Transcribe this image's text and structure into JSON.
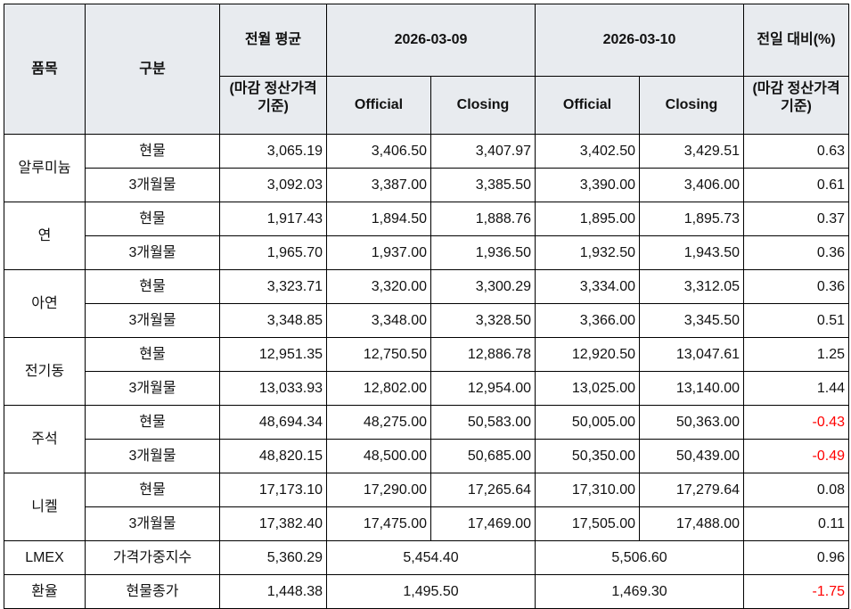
{
  "header": {
    "item": "품목",
    "type": "구분",
    "prev_month_avg": "전월 평균",
    "basis_note": "(마감 정산가격 기준)",
    "date1": "2026-03-09",
    "date2": "2026-03-10",
    "change": "전일 대비(%)",
    "official": "Official",
    "closing": "Closing"
  },
  "colors": {
    "header_bg": "#e8ebef",
    "negative": "#ff0000"
  },
  "groups": [
    {
      "name": "알루미늄",
      "rows": [
        {
          "type": "현물",
          "avg": "3,065.19",
          "d1_official": "3,406.50",
          "d1_closing": "3,407.97",
          "d2_official": "3,402.50",
          "d2_closing": "3,429.51",
          "change": "0.63"
        },
        {
          "type": "3개월물",
          "avg": "3,092.03",
          "d1_official": "3,387.00",
          "d1_closing": "3,385.50",
          "d2_official": "3,390.00",
          "d2_closing": "3,406.00",
          "change": "0.61"
        }
      ]
    },
    {
      "name": "연",
      "rows": [
        {
          "type": "현물",
          "avg": "1,917.43",
          "d1_official": "1,894.50",
          "d1_closing": "1,888.76",
          "d2_official": "1,895.00",
          "d2_closing": "1,895.73",
          "change": "0.37"
        },
        {
          "type": "3개월물",
          "avg": "1,965.70",
          "d1_official": "1,937.00",
          "d1_closing": "1,936.50",
          "d2_official": "1,932.50",
          "d2_closing": "1,943.50",
          "change": "0.36"
        }
      ]
    },
    {
      "name": "아연",
      "rows": [
        {
          "type": "현물",
          "avg": "3,323.71",
          "d1_official": "3,320.00",
          "d1_closing": "3,300.29",
          "d2_official": "3,334.00",
          "d2_closing": "3,312.05",
          "change": "0.36"
        },
        {
          "type": "3개월물",
          "avg": "3,348.85",
          "d1_official": "3,348.00",
          "d1_closing": "3,328.50",
          "d2_official": "3,366.00",
          "d2_closing": "3,345.50",
          "change": "0.51"
        }
      ]
    },
    {
      "name": "전기동",
      "rows": [
        {
          "type": "현물",
          "avg": "12,951.35",
          "d1_official": "12,750.50",
          "d1_closing": "12,886.78",
          "d2_official": "12,920.50",
          "d2_closing": "13,047.61",
          "change": "1.25"
        },
        {
          "type": "3개월물",
          "avg": "13,033.93",
          "d1_official": "12,802.00",
          "d1_closing": "12,954.00",
          "d2_official": "13,025.00",
          "d2_closing": "13,140.00",
          "change": "1.44"
        }
      ]
    },
    {
      "name": "주석",
      "rows": [
        {
          "type": "현물",
          "avg": "48,694.34",
          "d1_official": "48,275.00",
          "d1_closing": "50,583.00",
          "d2_official": "50,005.00",
          "d2_closing": "50,363.00",
          "change": "-0.43"
        },
        {
          "type": "3개월물",
          "avg": "48,820.15",
          "d1_official": "48,500.00",
          "d1_closing": "50,685.00",
          "d2_official": "50,350.00",
          "d2_closing": "50,439.00",
          "change": "-0.49"
        }
      ]
    },
    {
      "name": "니켈",
      "rows": [
        {
          "type": "현물",
          "avg": "17,173.10",
          "d1_official": "17,290.00",
          "d1_closing": "17,265.64",
          "d2_official": "17,310.00",
          "d2_closing": "17,279.64",
          "change": "0.08"
        },
        {
          "type": "3개월물",
          "avg": "17,382.40",
          "d1_official": "17,475.00",
          "d1_closing": "17,469.00",
          "d2_official": "17,505.00",
          "d2_closing": "17,488.00",
          "change": "0.11"
        }
      ]
    }
  ],
  "single_rows": [
    {
      "name": "LMEX",
      "type": "가격가중지수",
      "avg": "5,360.29",
      "d1": "5,454.40",
      "d2": "5,506.60",
      "change": "0.96"
    },
    {
      "name": "환율",
      "type": "현물종가",
      "avg": "1,448.38",
      "d1": "1,495.50",
      "d2": "1,469.30",
      "change": "-1.75"
    }
  ]
}
